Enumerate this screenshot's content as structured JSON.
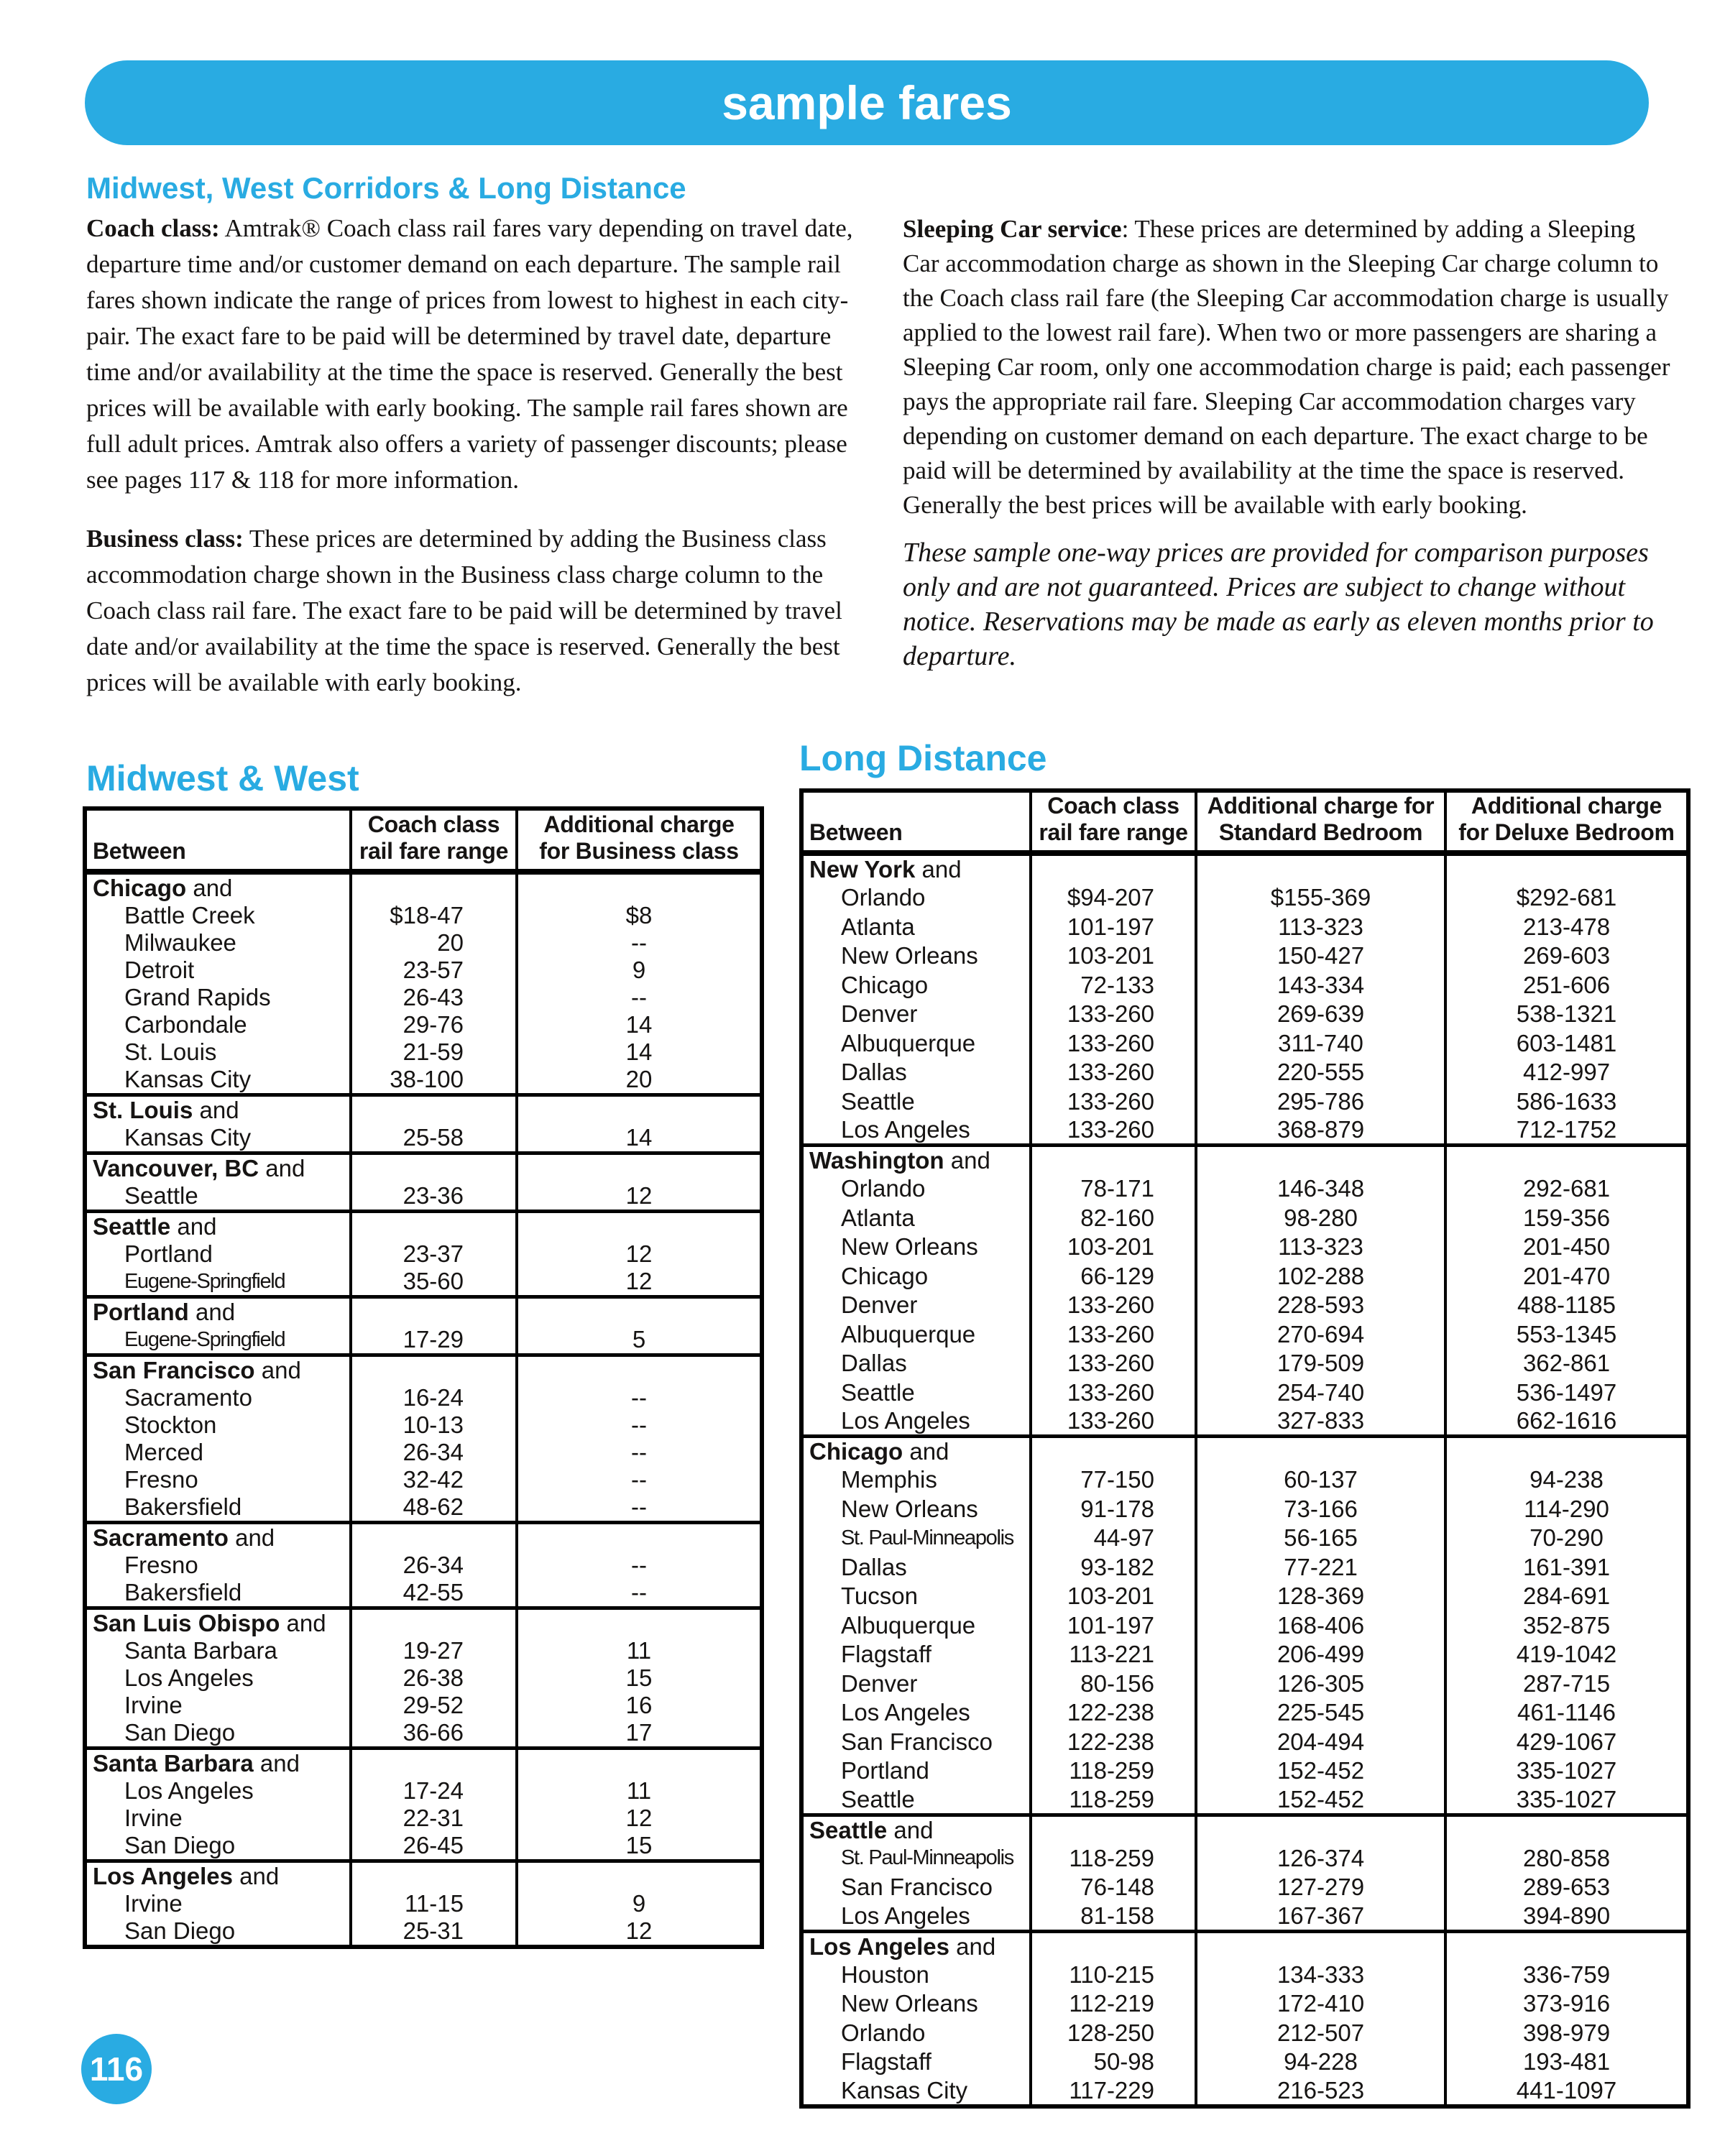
{
  "accent_color": "#29ABE2",
  "banner": {
    "title": "sample fares"
  },
  "page_number": "116",
  "section_heading": "Midwest, West Corridors & Long Distance",
  "paragraphs": {
    "coach": {
      "lead": "Coach class:",
      "text": " Amtrak® Coach class rail fares vary depending on travel date, departure time and/or customer demand on each departure. The sample rail fares shown indicate the range of prices from lowest to highest in each city-pair. The exact fare to be paid will be determined by travel date, departure time and/or availability at the time the space is reserved. Generally the best prices will be available with early booking. The sample rail fares shown are full adult prices. Amtrak also offers a variety of passenger discounts; please see pages 117 & 118 for more information."
    },
    "business": {
      "lead": "Business class:",
      "text": " These prices are determined by adding the Business class accommodation charge shown in the Business class charge column to the Coach class rail fare. The exact fare to be paid will be determined by travel date and/or availability at the time the space is reserved. Generally the best prices will be available with early booking."
    },
    "sleeping": {
      "lead": "Sleeping Car service",
      "text": ": These prices are determined by adding a Sleeping Car accommodation charge as shown in the Sleeping Car charge column to the Coach class rail fare (the Sleeping Car accommodation charge is usually applied to the lowest rail fare). When two or more passengers are sharing a Sleeping Car room, only one accommodation charge is paid; each passenger pays the appropriate rail fare. Sleeping Car accommodation charges vary depending on customer demand on each departure. The exact charge to be paid will be determined by availability at the time the space is reserved. Generally the best prices will be available with early booking."
    },
    "note": "These sample one-way prices are provided for comparison purposes only and are not guaranteed. Prices are subject to change without notice. Reservations may be made as early as eleven months prior to departure."
  },
  "midwest_table": {
    "title": "Midwest & West",
    "group_suffix": "and",
    "headers": [
      "Between",
      "Coach class\nrail fare range",
      "Additional charge\nfor Business class"
    ],
    "groups": [
      {
        "city": "Chicago",
        "rows": [
          [
            "Battle Creek",
            "$18-47",
            "$8"
          ],
          [
            "Milwaukee",
            "20",
            "--"
          ],
          [
            "Detroit",
            "23-57",
            "9"
          ],
          [
            "Grand Rapids",
            "26-43",
            "--"
          ],
          [
            "Carbondale",
            "29-76",
            "14"
          ],
          [
            "St. Louis",
            "21-59",
            "14"
          ],
          [
            "Kansas City",
            "38-100",
            "20"
          ]
        ]
      },
      {
        "city": "St. Louis",
        "rows": [
          [
            "Kansas City",
            "25-58",
            "14"
          ]
        ]
      },
      {
        "city": "Vancouver, BC",
        "rows": [
          [
            "Seattle",
            "23-36",
            "12"
          ]
        ]
      },
      {
        "city": "Seattle",
        "rows": [
          [
            "Portland",
            "23-37",
            "12"
          ],
          [
            "Eugene-Springfield",
            "35-60",
            "12"
          ]
        ]
      },
      {
        "city": "Portland",
        "rows": [
          [
            "Eugene-Springfield",
            "17-29",
            "5"
          ]
        ]
      },
      {
        "city": "San Francisco",
        "rows": [
          [
            "Sacramento",
            "16-24",
            "--"
          ],
          [
            "Stockton",
            "10-13",
            "--"
          ],
          [
            "Merced",
            "26-34",
            "--"
          ],
          [
            "Fresno",
            "32-42",
            "--"
          ],
          [
            "Bakersfield",
            "48-62",
            "--"
          ]
        ]
      },
      {
        "city": "Sacramento",
        "rows": [
          [
            "Fresno",
            "26-34",
            "--"
          ],
          [
            "Bakersfield",
            "42-55",
            "--"
          ]
        ]
      },
      {
        "city": "San Luis Obispo",
        "rows": [
          [
            "Santa Barbara",
            "19-27",
            "11"
          ],
          [
            "Los Angeles",
            "26-38",
            "15"
          ],
          [
            "Irvine",
            "29-52",
            "16"
          ],
          [
            "San Diego",
            "36-66",
            "17"
          ]
        ]
      },
      {
        "city": "Santa Barbara",
        "rows": [
          [
            "Los Angeles",
            "17-24",
            "11"
          ],
          [
            "Irvine",
            "22-31",
            "12"
          ],
          [
            "San Diego",
            "26-45",
            "15"
          ]
        ]
      },
      {
        "city": "Los Angeles",
        "rows": [
          [
            "Irvine",
            "11-15",
            "9"
          ],
          [
            "San Diego",
            "25-31",
            "12"
          ]
        ]
      }
    ]
  },
  "long_distance_table": {
    "title": "Long Distance",
    "group_suffix": "and",
    "headers": [
      "Between",
      "Coach class\nrail fare range",
      "Additional charge for\nStandard Bedroom",
      "Additional charge\nfor Deluxe Bedroom"
    ],
    "groups": [
      {
        "city": "New York",
        "rows": [
          [
            "Orlando",
            "$94-207",
            "$155-369",
            "$292-681"
          ],
          [
            "Atlanta",
            "101-197",
            "113-323",
            "213-478"
          ],
          [
            "New Orleans",
            "103-201",
            "150-427",
            "269-603"
          ],
          [
            "Chicago",
            "72-133",
            "143-334",
            "251-606"
          ],
          [
            "Denver",
            "133-260",
            "269-639",
            "538-1321"
          ],
          [
            "Albuquerque",
            "133-260",
            "311-740",
            "603-1481"
          ],
          [
            "Dallas",
            "133-260",
            "220-555",
            "412-997"
          ],
          [
            "Seattle",
            "133-260",
            "295-786",
            "586-1633"
          ],
          [
            "Los Angeles",
            "133-260",
            "368-879",
            "712-1752"
          ]
        ]
      },
      {
        "city": "Washington",
        "rows": [
          [
            "Orlando",
            "78-171",
            "146-348",
            "292-681"
          ],
          [
            "Atlanta",
            "82-160",
            "98-280",
            "159-356"
          ],
          [
            "New Orleans",
            "103-201",
            "113-323",
            "201-450"
          ],
          [
            "Chicago",
            "66-129",
            "102-288",
            "201-470"
          ],
          [
            "Denver",
            "133-260",
            "228-593",
            "488-1185"
          ],
          [
            "Albuquerque",
            "133-260",
            "270-694",
            "553-1345"
          ],
          [
            "Dallas",
            "133-260",
            "179-509",
            "362-861"
          ],
          [
            "Seattle",
            "133-260",
            "254-740",
            "536-1497"
          ],
          [
            "Los Angeles",
            "133-260",
            "327-833",
            "662-1616"
          ]
        ]
      },
      {
        "city": "Chicago",
        "rows": [
          [
            "Memphis",
            "77-150",
            "60-137",
            "94-238"
          ],
          [
            "New Orleans",
            "91-178",
            "73-166",
            "114-290"
          ],
          [
            "St. Paul-Minneapolis",
            "44-97",
            "56-165",
            "70-290"
          ],
          [
            "Dallas",
            "93-182",
            "77-221",
            "161-391"
          ],
          [
            "Tucson",
            "103-201",
            "128-369",
            "284-691"
          ],
          [
            "Albuquerque",
            "101-197",
            "168-406",
            "352-875"
          ],
          [
            "Flagstaff",
            "113-221",
            "206-499",
            "419-1042"
          ],
          [
            "Denver",
            "80-156",
            "126-305",
            "287-715"
          ],
          [
            "Los Angeles",
            "122-238",
            "225-545",
            "461-1146"
          ],
          [
            "San Francisco",
            "122-238",
            "204-494",
            "429-1067"
          ],
          [
            "Portland",
            "118-259",
            "152-452",
            "335-1027"
          ],
          [
            "Seattle",
            "118-259",
            "152-452",
            "335-1027"
          ]
        ]
      },
      {
        "city": "Seattle",
        "rows": [
          [
            "St. Paul-Minneapolis",
            "118-259",
            "126-374",
            "280-858"
          ],
          [
            "San Francisco",
            "76-148",
            "127-279",
            "289-653"
          ],
          [
            "Los Angeles",
            "81-158",
            "167-367",
            "394-890"
          ]
        ]
      },
      {
        "city": "Los Angeles",
        "rows": [
          [
            "Houston",
            "110-215",
            "134-333",
            "336-759"
          ],
          [
            "New Orleans",
            "112-219",
            "172-410",
            "373-916"
          ],
          [
            "Orlando",
            "128-250",
            "212-507",
            "398-979"
          ],
          [
            "Flagstaff",
            "50-98",
            "94-228",
            "193-481"
          ],
          [
            "Kansas City",
            "117-229",
            "216-523",
            "441-1097"
          ]
        ]
      }
    ]
  }
}
